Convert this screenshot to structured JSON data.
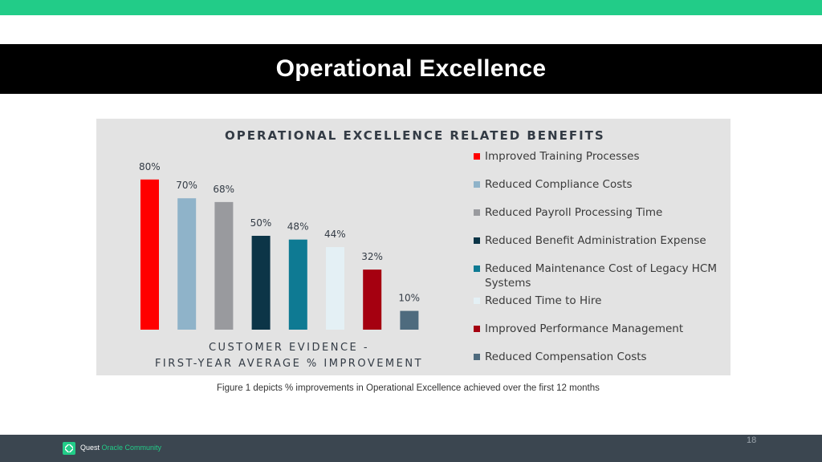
{
  "slide": {
    "title": "Operational Excellence",
    "figure_caption": "Figure 1 depicts % improvements in Operational Excellence achieved over the first 12 months",
    "page_number": "18",
    "brand_part1": "Quest",
    "brand_part2": "Oracle Community",
    "colors": {
      "top_bar": "#22cc88",
      "title_band": "#000000",
      "footer": "#3b4650"
    }
  },
  "chart_data": {
    "type": "bar",
    "title": "OPERATIONAL EXCELLENCE RELATED BENEFITS",
    "subcaption_line1": "CUSTOMER EVIDENCE -",
    "subcaption_line2": "FIRST-YEAR AVERAGE % IMPROVEMENT",
    "ylim": [
      0,
      100
    ],
    "grid": false,
    "legend_position": "right",
    "categories": [
      "Improved Training Processes",
      "Reduced Compliance Costs",
      "Reduced Payroll Processing Time",
      "Reduced Benefit Administration Expense",
      "Reduced Maintenance Cost of Legacy HCM Systems",
      "Reduced Time to Hire",
      "Improved Performance Management",
      "Reduced Compensation Costs"
    ],
    "values": [
      80,
      70,
      68,
      50,
      48,
      44,
      32,
      10
    ],
    "value_labels": [
      "80%",
      "70%",
      "68%",
      "50%",
      "48%",
      "44%",
      "32%",
      "10%"
    ],
    "colors": [
      "#ff0000",
      "#8fb3c9",
      "#999a9e",
      "#0c3547",
      "#0e7a93",
      "#e4f0f5",
      "#a50010",
      "#4e6b7e"
    ]
  }
}
